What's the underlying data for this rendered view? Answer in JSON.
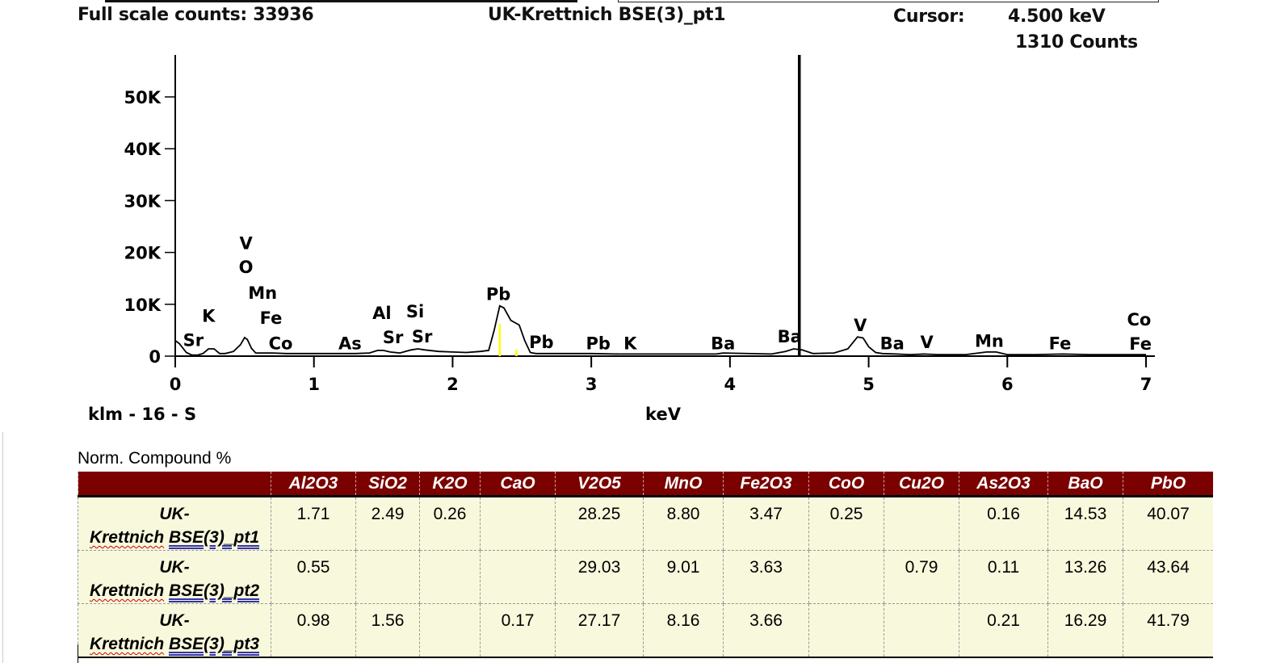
{
  "header": {
    "full_scale": "Full scale counts: 33936",
    "title": "UK-Krettnich BSE(3)_pt1",
    "cursor_label": "Cursor:",
    "cursor_energy": "4.500 keV",
    "cursor_counts": "1310 Counts"
  },
  "chart_data": {
    "type": "line",
    "title": "UK-Krettnich BSE(3)_pt1",
    "xlabel": "keV",
    "ylabel": "",
    "footer_label": "klm - 16 - S",
    "xlim": [
      0,
      7
    ],
    "ylim": [
      0,
      58000
    ],
    "x_ticks": [
      "0",
      "1",
      "2",
      "3",
      "4",
      "5",
      "6",
      "7"
    ],
    "y_ticks": [
      {
        "v": 0,
        "label": "0"
      },
      {
        "v": 10000,
        "label": "10K"
      },
      {
        "v": 20000,
        "label": "20K"
      },
      {
        "v": 30000,
        "label": "30K"
      },
      {
        "v": 40000,
        "label": "40K"
      },
      {
        "v": 50000,
        "label": "50K"
      }
    ],
    "cursor_kev": 4.5,
    "markers_kev": [
      2.34,
      2.46
    ],
    "series": [
      {
        "x": [
          0.0,
          0.03,
          0.08,
          0.12,
          0.16,
          0.2,
          0.24,
          0.28,
          0.32,
          0.36,
          0.42,
          0.47,
          0.5,
          0.52,
          0.55,
          0.58,
          0.62,
          0.7,
          0.8,
          0.9,
          1.0,
          1.1,
          1.2,
          1.3,
          1.4,
          1.46,
          1.5,
          1.55,
          1.62,
          1.7,
          1.75,
          1.8,
          1.9,
          2.0,
          2.1,
          2.2,
          2.26,
          2.3,
          2.34,
          2.37,
          2.42,
          2.48,
          2.52,
          2.56,
          2.6,
          2.8,
          3.0,
          3.2,
          3.5,
          3.9,
          3.95,
          4.3,
          4.4,
          4.46,
          4.52,
          4.6,
          4.75,
          4.85,
          4.92,
          4.96,
          5.0,
          5.05,
          5.1,
          5.2,
          5.3,
          5.4,
          5.5,
          5.7,
          5.85,
          5.92,
          6.0,
          6.2,
          6.4,
          6.6,
          6.8,
          7.0
        ],
        "y": [
          3000,
          2400,
          700,
          200,
          200,
          500,
          1400,
          1400,
          500,
          500,
          900,
          2200,
          3600,
          3200,
          1500,
          600,
          600,
          600,
          500,
          500,
          500,
          500,
          500,
          500,
          600,
          1100,
          1100,
          800,
          600,
          1200,
          1400,
          1200,
          900,
          800,
          700,
          900,
          1100,
          5000,
          9700,
          9300,
          6900,
          6000,
          3000,
          700,
          500,
          500,
          500,
          400,
          400,
          400,
          600,
          400,
          900,
          1400,
          1200,
          500,
          600,
          1400,
          3700,
          3500,
          1800,
          700,
          500,
          400,
          300,
          400,
          300,
          300,
          800,
          800,
          300,
          300,
          400,
          300,
          300,
          300
        ]
      }
    ],
    "annotations": [
      {
        "label": "Sr",
        "kev": 0.13,
        "counts": 3200
      },
      {
        "label": "K",
        "kev": 0.24,
        "counts": 7900
      },
      {
        "label": "V",
        "kev": 0.51,
        "counts": 21900
      },
      {
        "label": "O",
        "kev": 0.51,
        "counts": 17300
      },
      {
        "label": "Mn",
        "kev": 0.63,
        "counts": 12300
      },
      {
        "label": "Fe",
        "kev": 0.69,
        "counts": 7500
      },
      {
        "label": "Co",
        "kev": 0.76,
        "counts": 2600
      },
      {
        "label": "As",
        "kev": 1.26,
        "counts": 2600
      },
      {
        "label": "Al",
        "kev": 1.49,
        "counts": 8400
      },
      {
        "label": "Si",
        "kev": 1.73,
        "counts": 8700
      },
      {
        "label": "Sr",
        "kev": 1.57,
        "counts": 3700
      },
      {
        "label": "Sr",
        "kev": 1.78,
        "counts": 3900
      },
      {
        "label": "Pb",
        "kev": 2.33,
        "counts": 12100
      },
      {
        "label": "Pb",
        "kev": 2.64,
        "counts": 2800
      },
      {
        "label": "Pb",
        "kev": 3.05,
        "counts": 2600
      },
      {
        "label": "K",
        "kev": 3.28,
        "counts": 2600
      },
      {
        "label": "Ba",
        "kev": 3.95,
        "counts": 2600
      },
      {
        "label": "Ba",
        "kev": 4.43,
        "counts": 3900
      },
      {
        "label": "V",
        "kev": 4.94,
        "counts": 6100
      },
      {
        "label": "Ba",
        "kev": 5.17,
        "counts": 2600
      },
      {
        "label": "V",
        "kev": 5.42,
        "counts": 2800
      },
      {
        "label": "Mn",
        "kev": 5.87,
        "counts": 3000
      },
      {
        "label": "Fe",
        "kev": 6.38,
        "counts": 2600
      },
      {
        "label": "Co",
        "kev": 6.95,
        "counts": 7200
      },
      {
        "label": "Fe",
        "kev": 6.96,
        "counts": 2500
      }
    ],
    "colors": {
      "trace": "#000000",
      "marker": "#ffff00"
    }
  },
  "table": {
    "caption": "Norm. Compound %",
    "columns": [
      "Al2O3",
      "SiO2",
      "K2O",
      "CaO",
      "V2O5",
      "MnO",
      "Fe2O3",
      "CoO",
      "Cu2O",
      "As2O3",
      "BaO",
      "PbO"
    ],
    "rows": [
      {
        "label_a": "UK-",
        "label_b": "Krettnich",
        "label_c": "BSE(3)_pt1",
        "values": [
          "1.71",
          "2.49",
          "0.26",
          "",
          "28.25",
          "8.80",
          "3.47",
          "0.25",
          "",
          "0.16",
          "14.53",
          "40.07"
        ]
      },
      {
        "label_a": "UK-",
        "label_b": "Krettnich",
        "label_c": "BSE(3)_pt2",
        "values": [
          "0.55",
          "",
          "",
          "",
          "29.03",
          "9.01",
          "3.63",
          "",
          "0.79",
          "0.11",
          "13.26",
          "43.64"
        ]
      },
      {
        "label_a": "UK-",
        "label_b": "Krettnich",
        "label_c": "BSE(3)_pt3",
        "values": [
          "0.98",
          "1.56",
          "",
          "0.17",
          "27.17",
          "8.16",
          "3.66",
          "",
          "",
          "0.21",
          "16.29",
          "41.79"
        ]
      }
    ],
    "header_color": "#7b0000",
    "cell_color": "#f8f8dc"
  }
}
